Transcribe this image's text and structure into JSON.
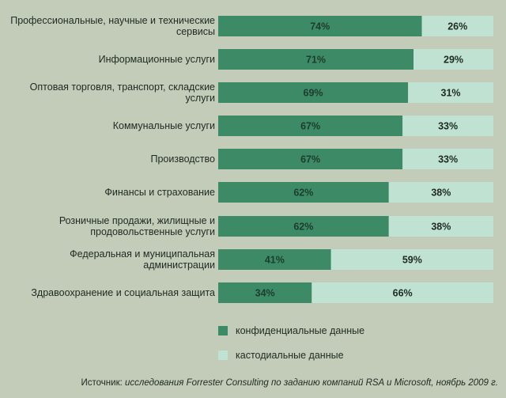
{
  "chart_data": {
    "type": "bar",
    "stacked": true,
    "orientation": "horizontal",
    "categories": [
      "Профессиональные, научные и технические сервисы",
      "Информационные услуги",
      "Оптовая торговля, транспорт, складские услуги",
      "Коммунальные услуги",
      "Производство",
      "Финансы и страхование",
      "Розничные продажи, жилищные и продовольственные услуги",
      "Федеральная и муниципальная администрации",
      "Здравоохранение и социальная защита"
    ],
    "series": [
      {
        "name": "конфиденциальные данные",
        "values": [
          74,
          71,
          69,
          67,
          67,
          62,
          62,
          41,
          34
        ],
        "color": "#3d8a66"
      },
      {
        "name": "кастодиальные данные",
        "values": [
          26,
          29,
          31,
          33,
          33,
          38,
          38,
          59,
          66
        ],
        "color": "#bfe2d2"
      }
    ],
    "value_suffix": "%",
    "xlim": [
      0,
      100
    ]
  },
  "colors": {
    "background": "#c3ccb9",
    "confidential": "#3d8a66",
    "custodial": "#bfe2d2",
    "text": "#1e2a22"
  },
  "source": {
    "prefix": "Источник:",
    "body": "исследования Forrester Consulting по заданию компаний RSA и Microsoft, ноябрь 2009 г."
  }
}
